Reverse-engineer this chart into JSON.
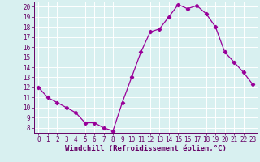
{
  "x": [
    0,
    1,
    2,
    3,
    4,
    5,
    6,
    7,
    8,
    9,
    10,
    11,
    12,
    13,
    14,
    15,
    16,
    17,
    18,
    19,
    20,
    21,
    22,
    23
  ],
  "y": [
    12,
    11,
    10.5,
    10,
    9.5,
    8.5,
    8.5,
    8,
    7.7,
    10.5,
    13,
    15.5,
    17.5,
    17.8,
    19,
    20.2,
    19.8,
    20.1,
    19.3,
    18,
    15.5,
    14.5,
    13.5,
    12.3
  ],
  "line_color": "#990099",
  "marker": "D",
  "markersize": 2.2,
  "linewidth": 0.9,
  "bg_color": "#d8f0f0",
  "grid_color": "#ffffff",
  "xlabel": "Windchill (Refroidissement éolien,°C)",
  "xlabel_fontsize": 6.5,
  "xlabel_color": "#660066",
  "tick_color": "#660066",
  "tick_fontsize": 5.5,
  "ylim": [
    7.5,
    20.5
  ],
  "xlim": [
    -0.5,
    23.5
  ],
  "yticks": [
    8,
    9,
    10,
    11,
    12,
    13,
    14,
    15,
    16,
    17,
    18,
    19,
    20
  ],
  "xticks": [
    0,
    1,
    2,
    3,
    4,
    5,
    6,
    7,
    8,
    9,
    10,
    11,
    12,
    13,
    14,
    15,
    16,
    17,
    18,
    19,
    20,
    21,
    22,
    23
  ]
}
